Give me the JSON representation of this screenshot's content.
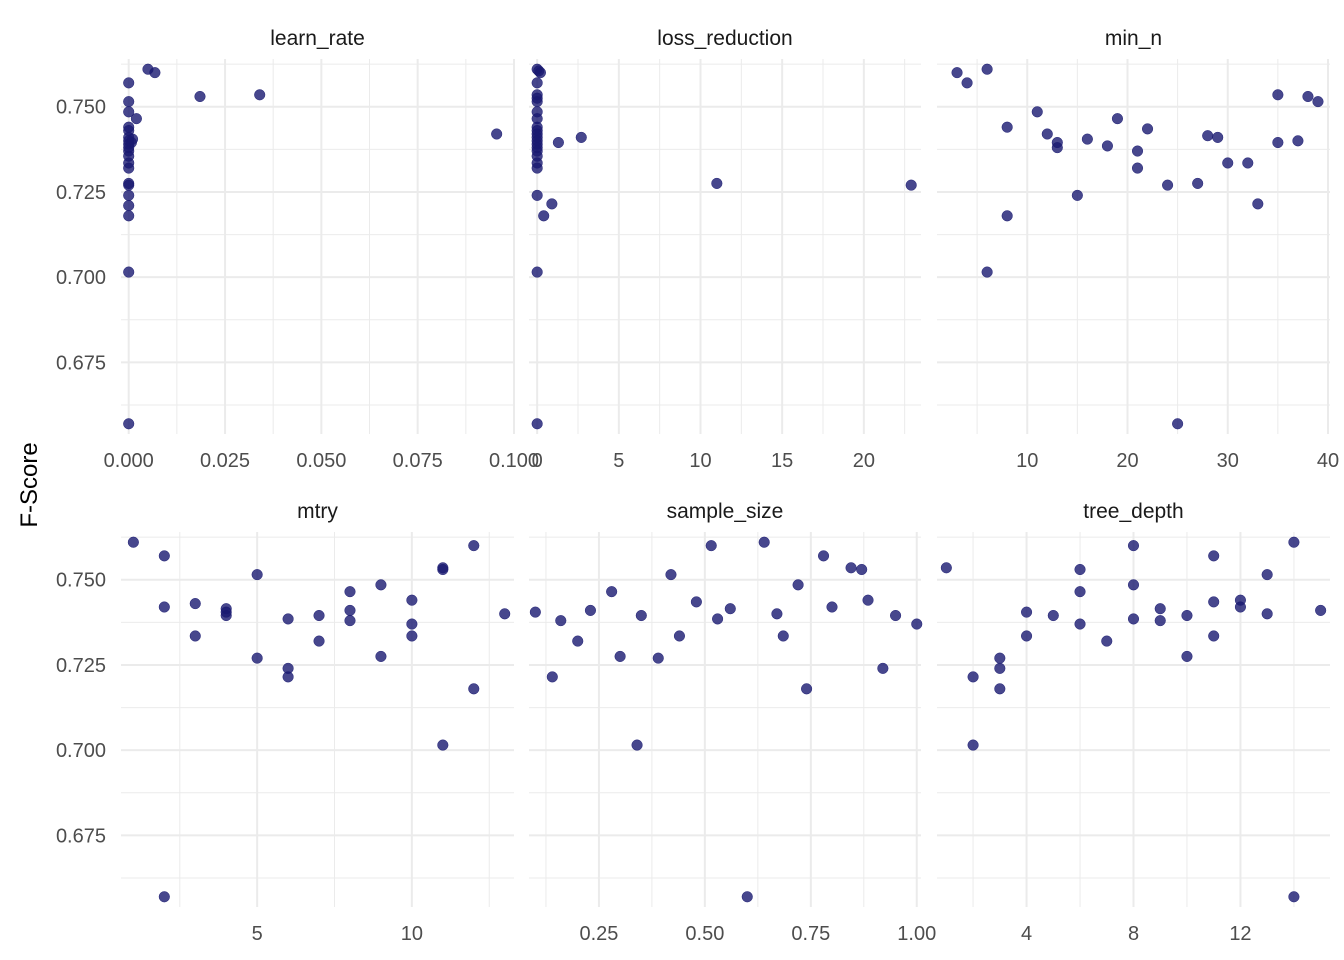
{
  "chart_data": {
    "type": "scatter",
    "ylabel": "F-Score",
    "ylim": [
      0.654,
      0.764
    ],
    "yticks": [
      0.675,
      0.7,
      0.725,
      0.75
    ],
    "ytick_labels": [
      "0.675",
      "0.700",
      "0.725",
      "0.750"
    ],
    "point_color": "#191970",
    "panels": [
      {
        "name": "learn_rate",
        "xlim": [
          -0.002,
          0.1
        ],
        "xticks": [
          0.0,
          0.025,
          0.05,
          0.075,
          0.1
        ],
        "xtick_labels": [
          "0.000",
          "0.025",
          "0.050",
          "0.075",
          "0.100"
        ],
        "points": [
          [
            0.0,
            0.757
          ],
          [
            0.0,
            0.7515
          ],
          [
            0.0,
            0.7485
          ],
          [
            0.0,
            0.744
          ],
          [
            0.0,
            0.743
          ],
          [
            0.0,
            0.741
          ],
          [
            0.0,
            0.74
          ],
          [
            0.0,
            0.739
          ],
          [
            0.0,
            0.738
          ],
          [
            0.0,
            0.737
          ],
          [
            0.0,
            0.7355
          ],
          [
            0.0,
            0.7335
          ],
          [
            0.0,
            0.732
          ],
          [
            0.0,
            0.7275
          ],
          [
            0.0,
            0.727
          ],
          [
            0.0,
            0.724
          ],
          [
            0.0,
            0.721
          ],
          [
            0.0,
            0.718
          ],
          [
            0.0,
            0.7015
          ],
          [
            0.0,
            0.657
          ],
          [
            0.0007,
            0.7395
          ],
          [
            0.001,
            0.7405
          ],
          [
            0.002,
            0.7465
          ],
          [
            0.005,
            0.761
          ],
          [
            0.0068,
            0.76
          ],
          [
            0.0185,
            0.753
          ],
          [
            0.034,
            0.7535
          ],
          [
            0.0955,
            0.742
          ]
        ]
      },
      {
        "name": "loss_reduction",
        "xlim": [
          -0.5,
          23.5
        ],
        "xticks": [
          0,
          5,
          10,
          15,
          20
        ],
        "xtick_labels": [
          "0",
          "5",
          "10",
          "15",
          "20"
        ],
        "points": [
          [
            0.0,
            0.761
          ],
          [
            0.1,
            0.7605
          ],
          [
            0.2,
            0.76
          ],
          [
            0.0,
            0.757
          ],
          [
            0.0,
            0.7535
          ],
          [
            0.0,
            0.7525
          ],
          [
            0.0,
            0.7515
          ],
          [
            0.0,
            0.7485
          ],
          [
            0.0,
            0.7465
          ],
          [
            0.0,
            0.744
          ],
          [
            0.0,
            0.743
          ],
          [
            0.0,
            0.742
          ],
          [
            0.0,
            0.741
          ],
          [
            0.0,
            0.74
          ],
          [
            0.0,
            0.739
          ],
          [
            0.0,
            0.738
          ],
          [
            0.0,
            0.737
          ],
          [
            0.0,
            0.7355
          ],
          [
            0.0,
            0.7335
          ],
          [
            0.0,
            0.732
          ],
          [
            0.0,
            0.724
          ],
          [
            0.4,
            0.718
          ],
          [
            0.9,
            0.7215
          ],
          [
            0.0,
            0.7015
          ],
          [
            0.0,
            0.657
          ],
          [
            1.3,
            0.7395
          ],
          [
            2.7,
            0.741
          ],
          [
            11.0,
            0.7275
          ],
          [
            22.9,
            0.727
          ]
        ]
      },
      {
        "name": "min_n",
        "xlim": [
          1,
          40.2
        ],
        "xticks": [
          10,
          20,
          30,
          40
        ],
        "xtick_labels": [
          "10",
          "20",
          "30",
          "40"
        ],
        "points": [
          [
            3,
            0.76
          ],
          [
            4,
            0.757
          ],
          [
            6,
            0.761
          ],
          [
            6,
            0.7015
          ],
          [
            8,
            0.744
          ],
          [
            8,
            0.718
          ],
          [
            11,
            0.7485
          ],
          [
            12,
            0.742
          ],
          [
            13,
            0.7395
          ],
          [
            13,
            0.738
          ],
          [
            15,
            0.724
          ],
          [
            16,
            0.7405
          ],
          [
            18,
            0.7385
          ],
          [
            19,
            0.7465
          ],
          [
            21,
            0.737
          ],
          [
            21,
            0.732
          ],
          [
            22,
            0.7435
          ],
          [
            24,
            0.727
          ],
          [
            25,
            0.657
          ],
          [
            27,
            0.7275
          ],
          [
            28,
            0.7415
          ],
          [
            29,
            0.741
          ],
          [
            30,
            0.7335
          ],
          [
            32,
            0.7335
          ],
          [
            33,
            0.7215
          ],
          [
            35,
            0.7535
          ],
          [
            35,
            0.7395
          ],
          [
            37,
            0.74
          ],
          [
            38,
            0.753
          ],
          [
            39,
            0.7515
          ]
        ]
      },
      {
        "name": "mtry",
        "xlim": [
          0.6,
          13.3
        ],
        "xticks": [
          5,
          10
        ],
        "xtick_labels": [
          "5",
          "10"
        ],
        "points": [
          [
            1,
            0.761
          ],
          [
            2,
            0.757
          ],
          [
            2,
            0.742
          ],
          [
            2,
            0.657
          ],
          [
            3,
            0.743
          ],
          [
            3,
            0.7335
          ],
          [
            4,
            0.7415
          ],
          [
            4,
            0.7405
          ],
          [
            4,
            0.7395
          ],
          [
            5,
            0.7515
          ],
          [
            5,
            0.727
          ],
          [
            6,
            0.7385
          ],
          [
            6,
            0.724
          ],
          [
            6,
            0.7215
          ],
          [
            7,
            0.7395
          ],
          [
            7,
            0.732
          ],
          [
            8,
            0.7465
          ],
          [
            8,
            0.741
          ],
          [
            8,
            0.738
          ],
          [
            9,
            0.7485
          ],
          [
            9,
            0.7275
          ],
          [
            10,
            0.744
          ],
          [
            10,
            0.737
          ],
          [
            10,
            0.7335
          ],
          [
            11,
            0.7535
          ],
          [
            11,
            0.753
          ],
          [
            11,
            0.7015
          ],
          [
            12,
            0.76
          ],
          [
            12,
            0.718
          ],
          [
            13,
            0.74
          ]
        ]
      },
      {
        "name": "sample_size",
        "xlim": [
          0.085,
          1.01
        ],
        "xticks": [
          0.25,
          0.5,
          0.75,
          1.0
        ],
        "xtick_labels": [
          "0.25",
          "0.50",
          "0.75",
          "1.00"
        ],
        "points": [
          [
            0.1,
            0.7405
          ],
          [
            0.14,
            0.7215
          ],
          [
            0.16,
            0.738
          ],
          [
            0.2,
            0.732
          ],
          [
            0.23,
            0.741
          ],
          [
            0.28,
            0.7465
          ],
          [
            0.3,
            0.7275
          ],
          [
            0.34,
            0.7015
          ],
          [
            0.35,
            0.7395
          ],
          [
            0.39,
            0.727
          ],
          [
            0.42,
            0.7515
          ],
          [
            0.44,
            0.7335
          ],
          [
            0.48,
            0.7435
          ],
          [
            0.515,
            0.76
          ],
          [
            0.53,
            0.7385
          ],
          [
            0.56,
            0.7415
          ],
          [
            0.6,
            0.657
          ],
          [
            0.64,
            0.761
          ],
          [
            0.67,
            0.74
          ],
          [
            0.685,
            0.7335
          ],
          [
            0.72,
            0.7485
          ],
          [
            0.74,
            0.718
          ],
          [
            0.78,
            0.757
          ],
          [
            0.8,
            0.742
          ],
          [
            0.845,
            0.7535
          ],
          [
            0.87,
            0.753
          ],
          [
            0.885,
            0.744
          ],
          [
            0.92,
            0.724
          ],
          [
            0.95,
            0.7395
          ],
          [
            1.0,
            0.737
          ]
        ]
      },
      {
        "name": "tree_depth",
        "xlim": [
          0.65,
          15.35
        ],
        "xticks": [
          4,
          8,
          12
        ],
        "xtick_labels": [
          "4",
          "8",
          "12"
        ],
        "points": [
          [
            1,
            0.7535
          ],
          [
            2,
            0.7215
          ],
          [
            2,
            0.7015
          ],
          [
            3,
            0.727
          ],
          [
            3,
            0.724
          ],
          [
            3,
            0.718
          ],
          [
            4,
            0.7405
          ],
          [
            4,
            0.7335
          ],
          [
            5,
            0.7395
          ],
          [
            6,
            0.753
          ],
          [
            6,
            0.7465
          ],
          [
            6,
            0.737
          ],
          [
            7,
            0.732
          ],
          [
            8,
            0.76
          ],
          [
            8,
            0.7485
          ],
          [
            8,
            0.7385
          ],
          [
            9,
            0.7415
          ],
          [
            9,
            0.738
          ],
          [
            10,
            0.7395
          ],
          [
            10,
            0.7275
          ],
          [
            11,
            0.757
          ],
          [
            11,
            0.7435
          ],
          [
            11,
            0.7335
          ],
          [
            12,
            0.744
          ],
          [
            12,
            0.742
          ],
          [
            13,
            0.7515
          ],
          [
            13,
            0.74
          ],
          [
            14,
            0.761
          ],
          [
            14,
            0.657
          ],
          [
            15,
            0.741
          ]
        ]
      }
    ]
  }
}
